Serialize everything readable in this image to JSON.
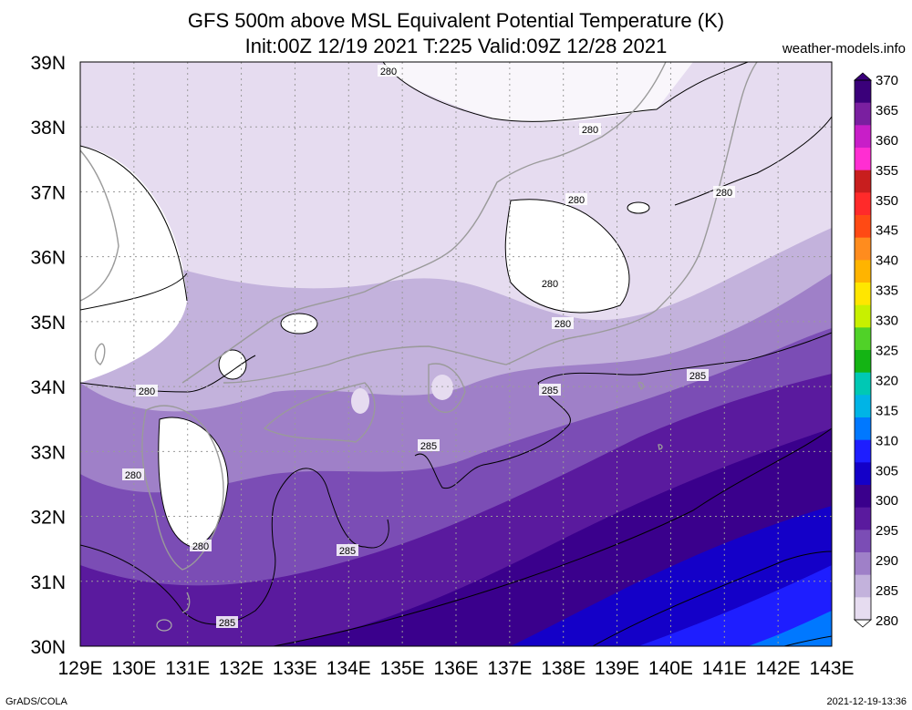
{
  "title": {
    "line1": "GFS 500m above MSL Equivalent Potential Temperature (K)",
    "line2": "Init:00Z 12/19 2021 T:225 Valid:09Z 12/28 2021"
  },
  "site": "weather-models.info",
  "footer": {
    "left": "GrADS/COLA",
    "right": "2021-12-19-13:36"
  },
  "map": {
    "lat_labels": [
      "39N",
      "38N",
      "37N",
      "36N",
      "35N",
      "34N",
      "33N",
      "32N",
      "31N",
      "30N"
    ],
    "lon_labels": [
      "129E",
      "130E",
      "131E",
      "132E",
      "133E",
      "134E",
      "135E",
      "136E",
      "137E",
      "138E",
      "139E",
      "140E",
      "141E",
      "142E",
      "143E"
    ],
    "contour_labels": [
      {
        "id": "c280-north",
        "text": "280"
      },
      {
        "id": "c280-honshu-n",
        "text": "280"
      },
      {
        "id": "c280-east",
        "text": "280"
      },
      {
        "id": "c280-kanto-a",
        "text": "280"
      },
      {
        "id": "c280-kanto-b",
        "text": "280"
      },
      {
        "id": "c280-kanto-c",
        "text": "280"
      },
      {
        "id": "c280-west",
        "text": "280"
      },
      {
        "id": "c280-kyushu-n",
        "text": "280"
      },
      {
        "id": "c280-kyushu-s",
        "text": "280"
      },
      {
        "id": "c285-south",
        "text": "285"
      },
      {
        "id": "c285-shikoku",
        "text": "285"
      },
      {
        "id": "c285-kii",
        "text": "285"
      },
      {
        "id": "c285-tokai",
        "text": "285"
      },
      {
        "id": "c285-east",
        "text": "285"
      }
    ]
  },
  "colorbar": {
    "labels": [
      "370",
      "365",
      "360",
      "355",
      "350",
      "345",
      "340",
      "335",
      "330",
      "325",
      "320",
      "315",
      "310",
      "305",
      "300",
      "295",
      "290",
      "285",
      "280"
    ],
    "colors": [
      "#3a007a",
      "#7a1fa0",
      "#c81ec8",
      "#ff2ed2",
      "#c81e1e",
      "#ff2a2a",
      "#ff4a14",
      "#ff8c1e",
      "#ffb400",
      "#ffe600",
      "#c8f000",
      "#50d228",
      "#14b414",
      "#00c8b4",
      "#00b4e6",
      "#0078ff",
      "#1e1eff",
      "#1400c8",
      "#3a008c",
      "#5a1a9e",
      "#7b4db5",
      "#9f80c8",
      "#c3b2dc",
      "#e6dcf0"
    ]
  }
}
